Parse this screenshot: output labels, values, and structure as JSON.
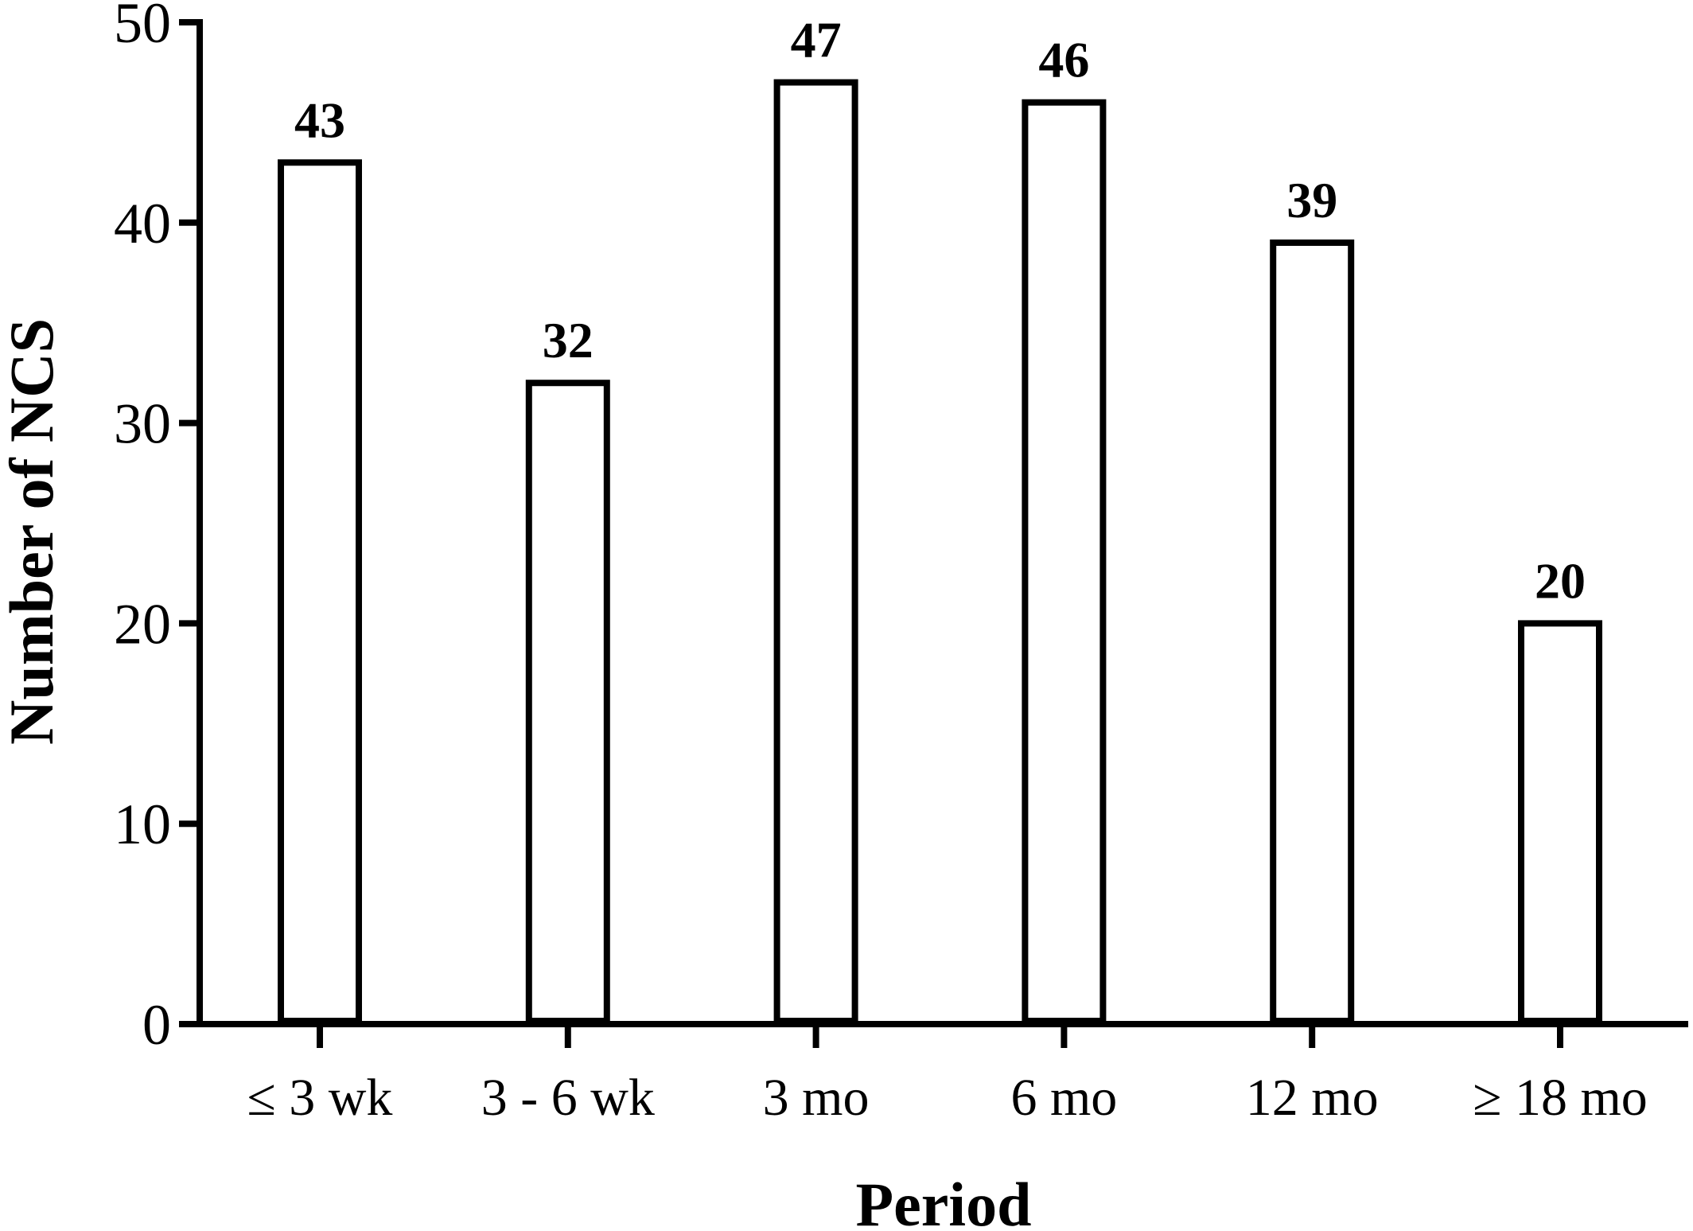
{
  "chart_data": {
    "type": "bar",
    "categories": [
      "≤ 3 wk",
      "3 - 6 wk",
      "3 mo",
      "6 mo",
      "12 mo",
      "≥ 18 mo"
    ],
    "values": [
      43,
      32,
      47,
      46,
      39,
      20
    ],
    "data_labels": [
      "43",
      "32",
      "47",
      "46",
      "39",
      "20"
    ],
    "xlabel": "Period",
    "ylabel": "Number of NCS",
    "ylim": [
      0,
      50
    ],
    "yticks": [
      0,
      10,
      20,
      30,
      40,
      50
    ],
    "grid": false,
    "bar_fill": "#ffffff",
    "bar_edge": "#000000"
  }
}
